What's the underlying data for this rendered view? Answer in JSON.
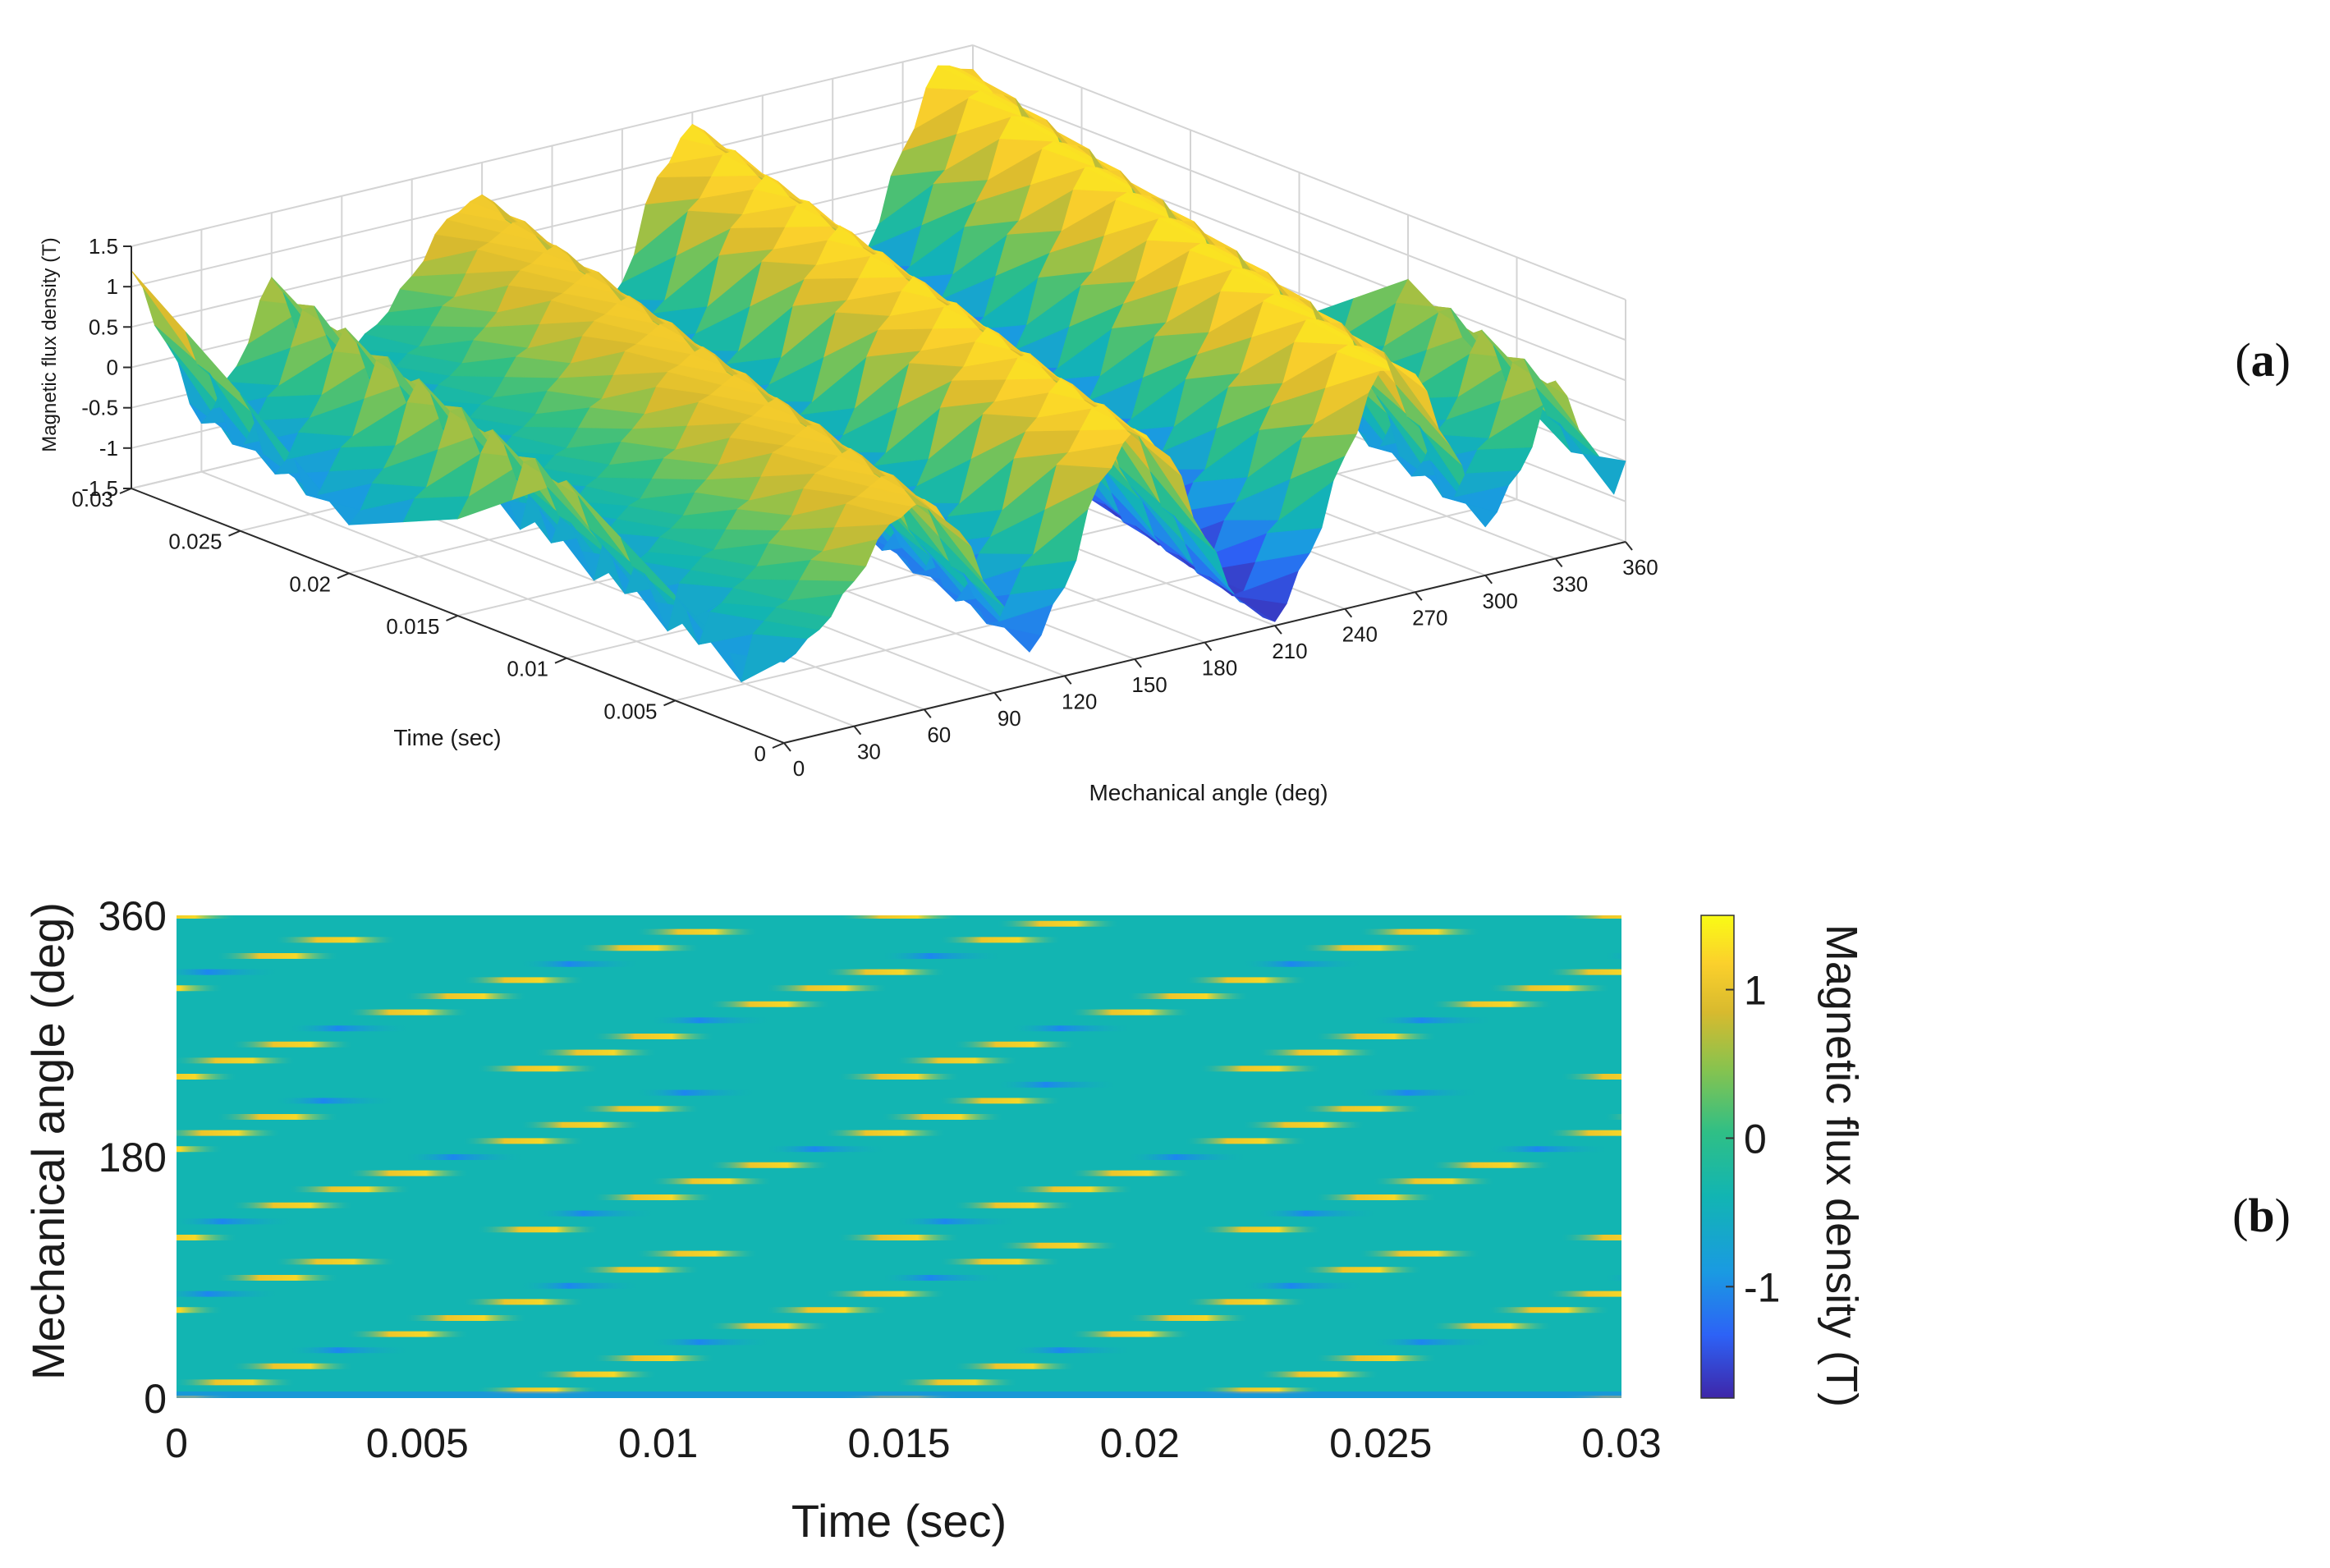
{
  "panels": {
    "a_label_open": "(",
    "a_label_letter": "a",
    "a_label_close": ")",
    "b_label_open": "(",
    "b_label_letter": "b",
    "b_label_close": ")"
  },
  "colormap": [
    "#3e26a8",
    "#2d62f6",
    "#1a9ae2",
    "#12b5b2",
    "#2fbf86",
    "#86c34f",
    "#d8ba2e",
    "#fbd02c",
    "#f9fb15"
  ],
  "chart_data": [
    {
      "id": "a",
      "type": "surface",
      "xlabel": "Mechanical angle (deg)",
      "ylabel": "Time (sec)",
      "zlabel": "Magnetic flux density (T)",
      "xlim": [
        0,
        360
      ],
      "ylim": [
        0,
        0.03
      ],
      "zlim": [
        -1.5,
        1.5
      ],
      "xticks": [
        0,
        30,
        60,
        90,
        120,
        150,
        180,
        210,
        240,
        270,
        300,
        330,
        360
      ],
      "xtick_labels": [
        "0",
        "30",
        "60",
        "90",
        "120",
        "150",
        "180",
        "210",
        "240",
        "270",
        "300",
        "330",
        "360"
      ],
      "yticks": [
        0,
        0.005,
        0.01,
        0.015,
        0.02,
        0.025,
        0.03
      ],
      "ytick_labels": [
        "0",
        "0.005",
        "0.01",
        "0.015",
        "0.02",
        "0.025",
        "0.03"
      ],
      "zticks": [
        -1.5,
        -1,
        -0.5,
        0,
        0.5,
        1,
        1.5
      ],
      "ztick_labels": [
        "-1.5",
        "-1",
        "-0.5",
        "0",
        "0.5",
        "1",
        "1.5"
      ],
      "surface_profile_at_t0": {
        "angle_deg": [
          0,
          15,
          30,
          45,
          60,
          75,
          90,
          105,
          120,
          135,
          150,
          165,
          180,
          195,
          210,
          225,
          240,
          255,
          270,
          285,
          300,
          315,
          330,
          345,
          360
        ],
        "flux_T": [
          -0.5,
          -0.2,
          0.3,
          0.9,
          1.1,
          0.6,
          -0.3,
          -1.1,
          -0.4,
          0.8,
          1.35,
          0.9,
          -0.2,
          -1.1,
          -1.45,
          -0.7,
          0.4,
          1.35,
          1.2,
          0.2,
          -0.9,
          -0.3,
          0.7,
          -0.2,
          -1.1
        ]
      }
    },
    {
      "id": "b",
      "type": "heatmap",
      "xlabel": "Time (sec)",
      "ylabel": "Mechanical angle (deg)",
      "xlim": [
        0,
        0.03
      ],
      "ylim": [
        0,
        360
      ],
      "xticks": [
        0,
        0.005,
        0.01,
        0.015,
        0.02,
        0.025,
        0.03
      ],
      "xtick_labels": [
        "0",
        "0.005",
        "0.01",
        "0.015",
        "0.02",
        "0.025",
        "0.03"
      ],
      "yticks": [
        0,
        180,
        360
      ],
      "ytick_labels": [
        "0",
        "180",
        "360"
      ],
      "background_value_T": 0,
      "pattern_period_sec": 0.0075,
      "band_slope_deg_per_sec": 10000,
      "stripe_spacing_deg": 12,
      "colorbar": {
        "label": "Magnetic flux density (T)",
        "range": [
          -1.75,
          1.5
        ],
        "ticks": [
          -1,
          0,
          1
        ],
        "tick_labels": [
          "-1",
          "0",
          "1"
        ]
      }
    }
  ]
}
